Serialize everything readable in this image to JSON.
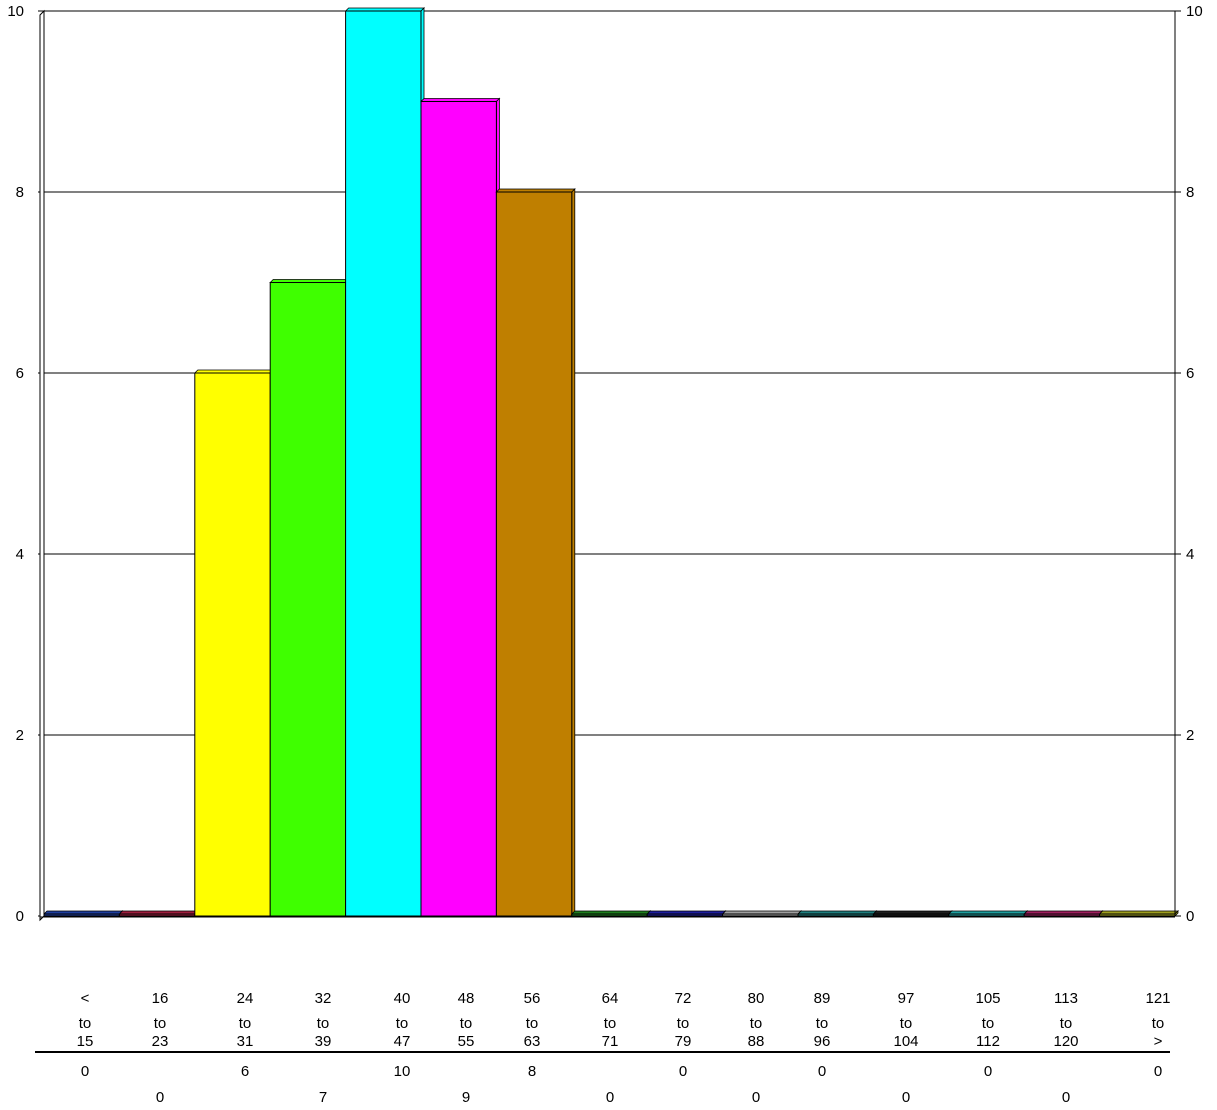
{
  "chart_data": {
    "type": "bar",
    "title": "",
    "xlabel": "",
    "ylabel": "",
    "ylim": [
      0,
      10
    ],
    "yticks": [
      "0",
      "2",
      "4",
      "6",
      "8",
      "10"
    ],
    "grid": true,
    "categories": [
      {
        "top": "<",
        "mid": "to",
        "bottom": "15"
      },
      {
        "top": "16",
        "mid": "to",
        "bottom": "23"
      },
      {
        "top": "24",
        "mid": "to",
        "bottom": "31"
      },
      {
        "top": "32",
        "mid": "to",
        "bottom": "39"
      },
      {
        "top": "40",
        "mid": "to",
        "bottom": "47"
      },
      {
        "top": "48",
        "mid": "to",
        "bottom": "55"
      },
      {
        "top": "56",
        "mid": "to",
        "bottom": "63"
      },
      {
        "top": "64",
        "mid": "to",
        "bottom": "71"
      },
      {
        "top": "72",
        "mid": "to",
        "bottom": "79"
      },
      {
        "top": "80",
        "mid": "to",
        "bottom": "88"
      },
      {
        "top": "89",
        "mid": "to",
        "bottom": "96"
      },
      {
        "top": "97",
        "mid": "to",
        "bottom": "104"
      },
      {
        "top": "105",
        "mid": "to",
        "bottom": "112"
      },
      {
        "top": "113",
        "mid": "to",
        "bottom": "120"
      },
      {
        "top": "121",
        "mid": "to",
        "bottom": ">"
      }
    ],
    "values": [
      0,
      0,
      6,
      7,
      10,
      9,
      8,
      0,
      0,
      0,
      0,
      0,
      0,
      0,
      0
    ],
    "value_labels": [
      "0",
      "0",
      "6",
      "7",
      "10",
      "9",
      "8",
      "0",
      "0",
      "0",
      "0",
      "0",
      "0",
      "0",
      "0"
    ],
    "colors": [
      "#1f3f9f",
      "#9f1f3f",
      "#ffff00",
      "#3fff00",
      "#00ffff",
      "#ff00ff",
      "#bf7f00",
      "#1f7f1f",
      "#1f1f9f",
      "#9f9f9f",
      "#1f7f7f",
      "#1f1f1f",
      "#1f9f9f",
      "#9f1f5f",
      "#9f9f1f"
    ]
  }
}
